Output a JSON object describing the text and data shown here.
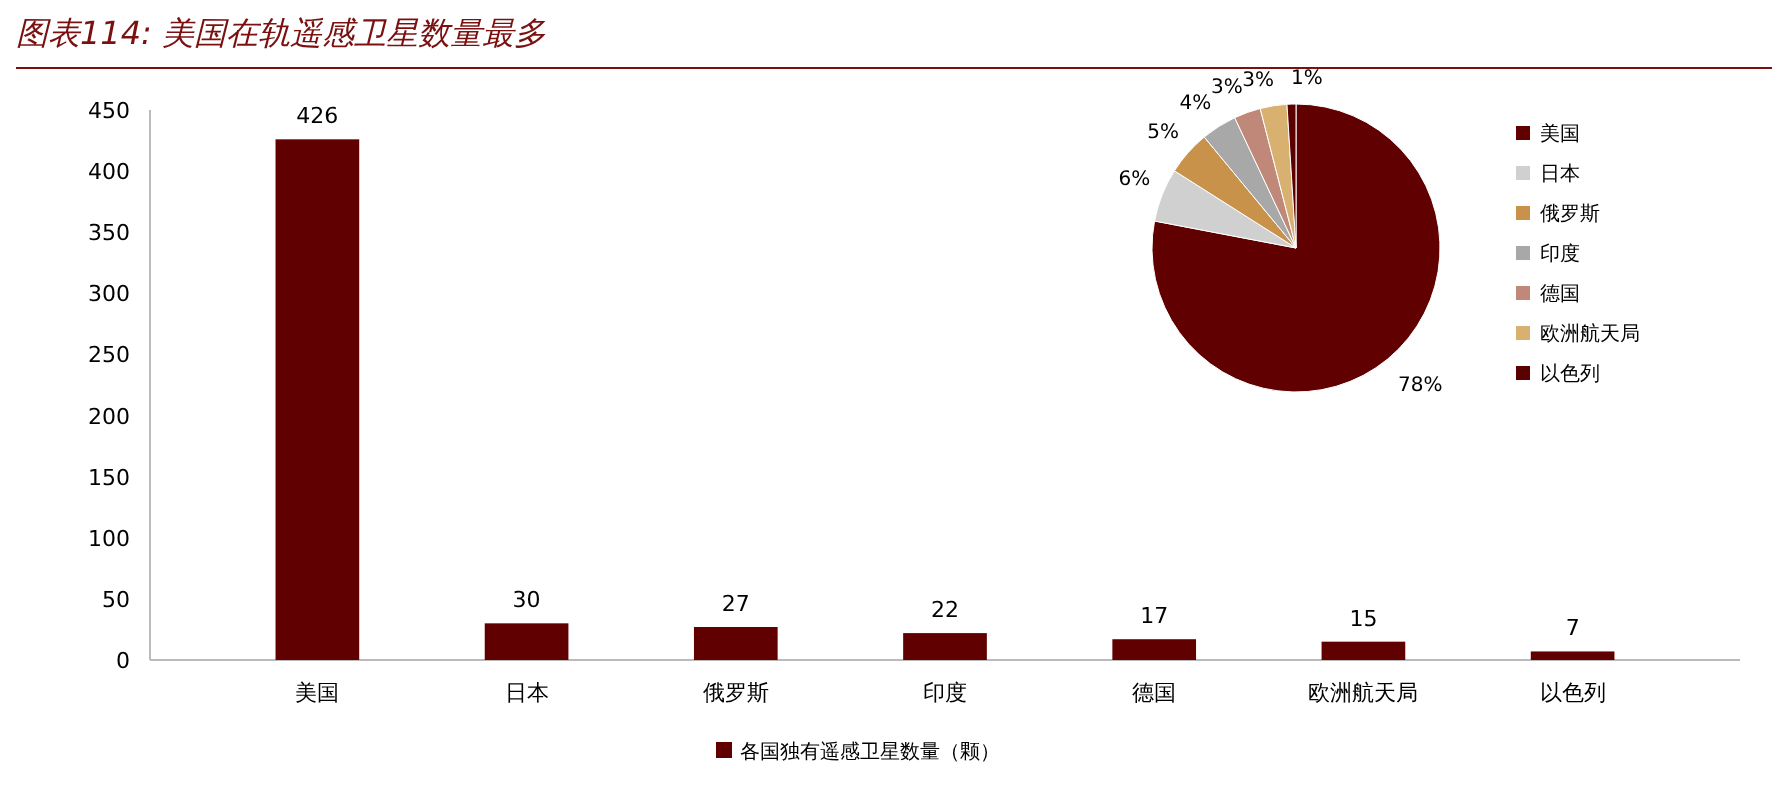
{
  "chart_data": [
    {
      "type": "bar",
      "title": "图表114: 美国在轨遥感卫星数量最多",
      "categories": [
        "美国",
        "日本",
        "俄罗斯",
        "印度",
        "德国",
        "欧洲航天局",
        "以色列"
      ],
      "series": [
        {
          "name": "各国独有遥感卫星数量（颗）",
          "color": "#600000",
          "values": [
            426,
            30,
            27,
            22,
            17,
            15,
            7
          ]
        }
      ],
      "ylim": [
        0,
        450
      ],
      "yticks": [
        0,
        50,
        100,
        150,
        200,
        250,
        300,
        350,
        400,
        450
      ],
      "grid": false,
      "legend": "bottom",
      "data_labels": true
    },
    {
      "type": "pie",
      "categories": [
        "美国",
        "日本",
        "俄罗斯",
        "印度",
        "德国",
        "欧洲航天局",
        "以色列"
      ],
      "values": [
        78,
        6,
        5,
        4,
        3,
        3,
        1
      ],
      "colors": [
        "#600000",
        "#d0d0d0",
        "#c8924a",
        "#a8a8a8",
        "#c08878",
        "#d8b070",
        "#5a0000"
      ],
      "legend": "right",
      "value_labels": [
        "78%",
        "6%",
        "5%",
        "4%",
        "3%",
        "3%",
        "1%"
      ]
    }
  ]
}
